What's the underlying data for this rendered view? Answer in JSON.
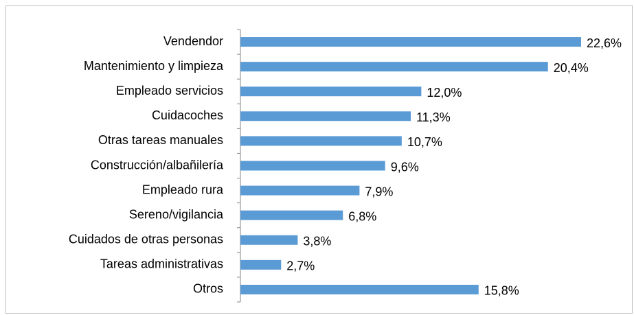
{
  "chart_data": {
    "type": "bar",
    "orientation": "horizontal",
    "categories": [
      "Vendendor",
      "Mantenimiento y limpieza",
      "Empleado servicios",
      "Cuidacoches",
      "Otras tareas manuales",
      "Construcción/albañilería",
      "Empleado rura",
      "Sereno/vigilancia",
      "Cuidados de otras personas",
      "Tareas administrativas",
      "Otros"
    ],
    "values": [
      22.6,
      20.4,
      12.0,
      11.3,
      10.7,
      9.6,
      7.9,
      6.8,
      3.8,
      2.7,
      15.8
    ],
    "value_labels": [
      "22,6%",
      "20,4%",
      "12,0%",
      "11,3%",
      "10,7%",
      "9,6%",
      "7,9%",
      "6,8%",
      "3,8%",
      "2,7%",
      "15,8%"
    ],
    "color": "#5b9bd5"
  }
}
